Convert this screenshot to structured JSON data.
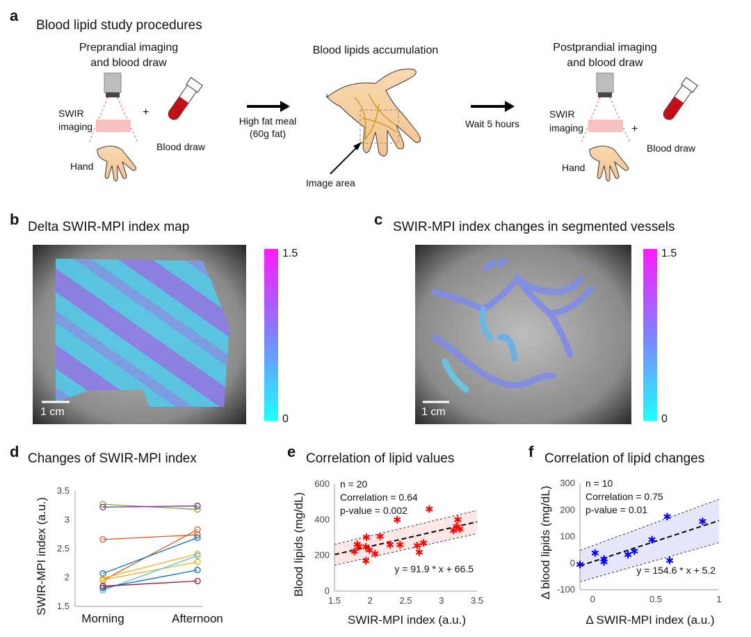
{
  "panel_a": {
    "label": "a",
    "title": "Blood lipid study procedures",
    "pre_title_1": "Preprandial imaging",
    "pre_title_2": "and blood draw",
    "swir_1": "SWIR",
    "swir_2": "imaging",
    "plus": "+",
    "hand": "Hand",
    "blood_draw": "Blood draw",
    "meal_1": "High fat meal",
    "meal_2": "(60g fat)",
    "accum_title": "Blood lipids accumulation",
    "image_area": "Image area",
    "wait": "Wait 5 hours",
    "post_title_1": "Postprandial imaging",
    "post_title_2": "and blood draw"
  },
  "panel_b": {
    "label": "b",
    "title": "Delta SWIR-MPI index map",
    "scale": "1 cm",
    "cbar_max": "1.5",
    "cbar_min": "0"
  },
  "panel_c": {
    "label": "c",
    "title": "SWIR-MPI index changes in segmented vessels",
    "scale": "1 cm",
    "cbar_max": "1.5",
    "cbar_min": "0"
  },
  "colors": {
    "cbar_top": "#ff1aff",
    "cbar_mid": "#8080ff",
    "cbar_bottom": "#1affff",
    "scatter_e": "#ff0000",
    "scatter_f": "#0000ff",
    "band_e": "#fde6e6",
    "band_f": "#e6e6fa"
  },
  "chart_data": [
    {
      "id": "d",
      "label": "d",
      "type": "line",
      "title": "Changes of SWIR-MPI index",
      "ylabel": "SWIR-MPI index (a.u.)",
      "xlabel": "",
      "categories": [
        "Morning",
        "Afternoon"
      ],
      "ylim": [
        1.5,
        3.5
      ],
      "yticks": [
        "1.5",
        "2",
        "2.5",
        "3",
        "3.5"
      ],
      "series": [
        {
          "color": "#77ac30",
          "values": [
            3.27,
            3.18
          ]
        },
        {
          "color": "#7e2f8e",
          "values": [
            3.22,
            3.24
          ]
        },
        {
          "color": "#d95319",
          "values": [
            2.66,
            2.74
          ]
        },
        {
          "color": "#d95319",
          "values": [
            1.95,
            2.83
          ]
        },
        {
          "color": "#0072bd",
          "values": [
            2.07,
            2.69
          ]
        },
        {
          "color": "#edb120",
          "values": [
            1.99,
            2.41
          ]
        },
        {
          "color": "#edb120",
          "values": [
            1.96,
            2.27
          ]
        },
        {
          "color": "#4dbeee",
          "values": [
            1.78,
            2.38
          ]
        },
        {
          "color": "#0072bd",
          "values": [
            1.82,
            2.13
          ]
        },
        {
          "color": "#a2142f",
          "values": [
            1.85,
            1.94
          ]
        }
      ]
    },
    {
      "id": "e",
      "label": "e",
      "type": "scatter",
      "title": "Correlation of lipid values",
      "xlabel": "SWIR-MPI index (a.u.)",
      "ylabel": "Blood lipids (mg/dL)",
      "xlim": [
        1.5,
        3.5
      ],
      "ylim": [
        0,
        600
      ],
      "xticks": [
        "1.5",
        "2",
        "2.5",
        "3",
        "3.5"
      ],
      "yticks": [
        "0",
        "200",
        "400",
        "600"
      ],
      "annotations": [
        "n = 20",
        "Correlation = 0.64",
        "p-value = 0.002"
      ],
      "fit_label": "y = 91.9 * x + 66.5",
      "fit": {
        "slope": 91.9,
        "intercept": 66.5,
        "ci_low_at_xmin": 145,
        "ci_low_at_xmax": 322,
        "ci_high_at_xmin": 262,
        "ci_high_at_xmax": 452
      },
      "points": [
        [
          1.78,
          222
        ],
        [
          1.82,
          262
        ],
        [
          1.84,
          250
        ],
        [
          1.94,
          248
        ],
        [
          1.95,
          302
        ],
        [
          1.94,
          170
        ],
        [
          1.99,
          230
        ],
        [
          2.07,
          210
        ],
        [
          2.14,
          307
        ],
        [
          2.28,
          260
        ],
        [
          2.38,
          400
        ],
        [
          2.42,
          260
        ],
        [
          2.66,
          255
        ],
        [
          2.69,
          218
        ],
        [
          2.75,
          270
        ],
        [
          2.83,
          460
        ],
        [
          3.17,
          340
        ],
        [
          3.21,
          362
        ],
        [
          3.23,
          400
        ],
        [
          3.26,
          347
        ]
      ]
    },
    {
      "id": "f",
      "label": "f",
      "type": "scatter",
      "title": "Correlation of lipid changes",
      "xlabel": "Δ SWIR-MPI index (a.u.)",
      "ylabel": "Δ blood lipids (mg/dL)",
      "xlim": [
        -0.1,
        1
      ],
      "ylim": [
        -100,
        300
      ],
      "xticks": [
        "0",
        "0.5",
        "1"
      ],
      "yticks": [
        "-100",
        "0",
        "100",
        "200",
        "300"
      ],
      "annotations": [
        "n = 10",
        "Correlation = 0.75",
        "p-value = 0.01"
      ],
      "fit_label": "y = 154.6 * x + 5.2",
      "fit": {
        "slope": 154.6,
        "intercept": 5.2,
        "ci_low_at_xmin": -70,
        "ci_low_at_xmax": 77,
        "ci_high_at_xmin": 48,
        "ci_high_at_xmax": 240
      },
      "points": [
        [
          -0.1,
          -5
        ],
        [
          0.02,
          38
        ],
        [
          0.09,
          15
        ],
        [
          0.09,
          5
        ],
        [
          0.28,
          32
        ],
        [
          0.33,
          45
        ],
        [
          0.47,
          88
        ],
        [
          0.59,
          175
        ],
        [
          0.61,
          10
        ],
        [
          0.87,
          157
        ]
      ]
    }
  ]
}
